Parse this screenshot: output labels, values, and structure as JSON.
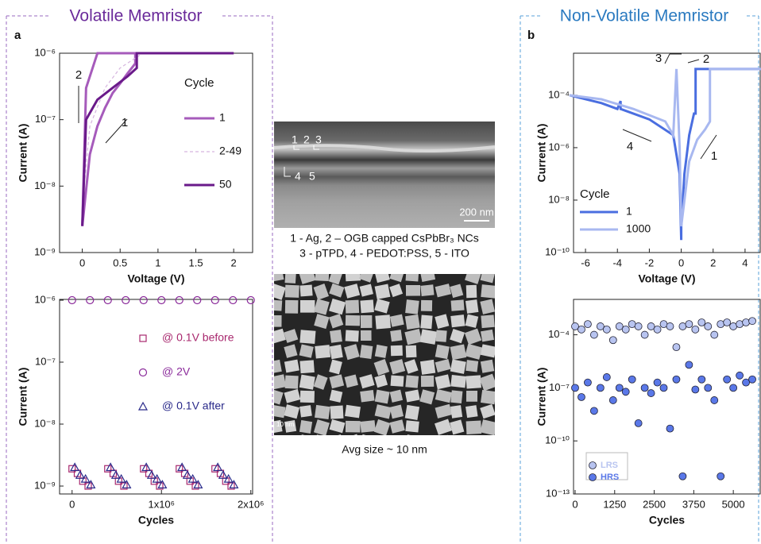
{
  "figure": {
    "left_title": "Volatile Memristor",
    "right_title": "Non-Volatile Memristor",
    "label_a": "a",
    "label_b": "b",
    "tem_labels": [
      "1",
      "2",
      "3",
      "4",
      "5"
    ],
    "tem_scale": "200 nm",
    "caption_lines": [
      "1 - Ag, 2 – OGB capped CsPbBr₃ NCs",
      "3 - pTPD, 4 - PEDOT:PSS, 5 - ITO"
    ],
    "sem_scale": "10 nm",
    "sem_caption": "Avg size ~ 10 nm"
  },
  "chart_data": [
    {
      "type": "line",
      "xlabel": "Voltage (V)",
      "ylabel": "Current (A)",
      "yscale": "log",
      "legend": true,
      "legend_title": "Cycle",
      "xlim": [
        -0.3,
        2.25
      ],
      "xticks": [
        0,
        0.5,
        1,
        1.5,
        2
      ],
      "ylim": [
        1e-09,
        1e-06
      ],
      "yticks": [
        {
          "value": 1e-09,
          "label": "10⁻⁹"
        },
        {
          "value": 1e-08,
          "label": "10⁻⁸"
        },
        {
          "value": 1e-07,
          "label": "10⁻⁷"
        },
        {
          "value": 1e-06,
          "label": "10⁻⁶"
        }
      ],
      "annotations": [
        "2",
        "1"
      ],
      "series": [
        {
          "name": "1",
          "color": "#a65bbb",
          "style": "solid",
          "x": [
            0,
            0.1,
            0.2,
            0.3,
            0.4,
            0.5,
            0.6,
            0.7,
            0.7,
            1,
            1.5,
            2,
            1,
            0.5,
            0.2,
            0.05,
            0
          ],
          "values": [
            2.5e-09,
            3e-08,
            8e-08,
            1.5e-07,
            2.5e-07,
            3.5e-07,
            5e-07,
            7e-07,
            1e-06,
            1e-06,
            1e-06,
            1e-06,
            1e-06,
            1e-06,
            1e-06,
            3e-07,
            2.5e-09
          ]
        },
        {
          "name": "2-49",
          "color": "#d6b5df",
          "style": "dashed",
          "x": [
            0,
            0.1,
            0.3,
            0.5,
            0.8,
            1.2
          ],
          "values": [
            5e-09,
            8e-08,
            3e-07,
            6e-07,
            1e-06,
            1e-06
          ]
        },
        {
          "name": "50",
          "color": "#6a1a8a",
          "style": "solid",
          "x": [
            0,
            0.05,
            0.2,
            0.4,
            0.6,
            0.72,
            0.72,
            1,
            2
          ],
          "values": [
            2.5e-09,
            1e-07,
            2e-07,
            3e-07,
            4.5e-07,
            6e-07,
            1e-06,
            1e-06,
            1e-06
          ]
        }
      ]
    },
    {
      "type": "scatter",
      "xlabel": "Cycles",
      "ylabel": "Current (A)",
      "yscale": "log",
      "legend": true,
      "filled": false,
      "xlim": [
        -140000,
        2020000
      ],
      "xticks": [
        0,
        {
          "value": 1000000,
          "label": "1x10⁶"
        },
        {
          "value": 2000000,
          "label": "2x10⁶"
        }
      ],
      "ylim": [
        7.45e-10,
        1.03e-06
      ],
      "yticks": [
        {
          "value": 1e-09,
          "label": "10⁻⁹"
        },
        {
          "value": 1e-08,
          "label": "10⁻⁸"
        },
        {
          "value": 1e-07,
          "label": "10⁻⁷"
        },
        {
          "value": 1e-06,
          "label": "10⁻⁶"
        }
      ],
      "series": [
        {
          "name": "@ 0.1V before",
          "color": "#a8286e",
          "marker": "square",
          "x": [
            0,
            60000,
            120000,
            180000,
            400000,
            460000,
            520000,
            580000,
            800000,
            860000,
            920000,
            980000,
            1200000,
            1260000,
            1320000,
            1380000,
            1600000,
            1660000,
            1720000,
            1780000
          ],
          "values": [
            1.9e-09,
            1.6e-09,
            1.2e-09,
            1e-09,
            1.9e-09,
            1.6e-09,
            1.2e-09,
            1e-09,
            1.9e-09,
            1.6e-09,
            1.2e-09,
            1e-09,
            1.9e-09,
            1.6e-09,
            1.2e-09,
            1e-09,
            1.9e-09,
            1.6e-09,
            1.2e-09,
            1e-09
          ]
        },
        {
          "name": "@ 2V",
          "color": "#8a2a9a",
          "marker": "circle",
          "x": [
            0,
            200000,
            400000,
            600000,
            800000,
            1000000,
            1200000,
            1400000,
            1600000,
            1800000,
            2000000
          ],
          "values": [
            1e-06,
            1e-06,
            1e-06,
            1e-06,
            1e-06,
            1e-06,
            1e-06,
            1e-06,
            1e-06,
            1e-06,
            1e-06
          ]
        },
        {
          "name": "@ 0.1V after",
          "color": "#2a2a8a",
          "marker": "triangle",
          "x": [
            30000,
            90000,
            150000,
            210000,
            430000,
            490000,
            550000,
            610000,
            830000,
            890000,
            950000,
            1010000,
            1230000,
            1290000,
            1350000,
            1410000,
            1630000,
            1690000,
            1750000,
            1810000
          ],
          "values": [
            2e-09,
            1.5e-09,
            1.3e-09,
            1.05e-09,
            2e-09,
            1.5e-09,
            1.3e-09,
            1.05e-09,
            2e-09,
            1.5e-09,
            1.3e-09,
            1.05e-09,
            2e-09,
            1.5e-09,
            1.3e-09,
            1.05e-09,
            2e-09,
            1.5e-09,
            1.3e-09,
            1.05e-09
          ]
        }
      ]
    },
    {
      "type": "line",
      "xlabel": "Voltage (V)",
      "ylabel": "Current (A)",
      "yscale": "log",
      "legend": true,
      "legend_title": "Cycle",
      "xlim": [
        -6.75,
        4.95
      ],
      "xticks": [
        -6,
        -4,
        -2,
        0,
        2,
        4
      ],
      "ylim": [
        1e-10,
        0.004
      ],
      "yticks": [
        {
          "value": 1e-10,
          "label": "10⁻¹⁰"
        },
        {
          "value": 1e-08,
          "label": "10⁻⁸"
        },
        {
          "value": 1e-06,
          "label": "10⁻⁶"
        },
        {
          "value": 0.0001,
          "label": "10⁻⁴"
        }
      ],
      "annotations": [
        "3",
        "2",
        "4",
        "1"
      ],
      "series": [
        {
          "name": "1",
          "color": "#4a6ee0",
          "style": "solid",
          "x": [
            -7,
            -5,
            -4,
            -3.8,
            -3.8,
            -2,
            -0.5,
            -0.1,
            0,
            0,
            0.2,
            0.5,
            0.8,
            0.9,
            0.9,
            1.5,
            5
          ],
          "values": [
            0.0001,
            5e-05,
            3e-05,
            6e-05,
            3e-05,
            1.2e-05,
            3e-06,
            1e-07,
            3e-10,
            1e-09,
            1e-07,
            3e-06,
            2e-05,
            2e-05,
            0.001,
            0.001,
            0.001
          ]
        },
        {
          "name": "1000",
          "color": "#a8b8f0",
          "style": "solid",
          "x": [
            -7,
            -5,
            -3,
            -1,
            -0.5,
            -0.3,
            -0.3,
            -0.1,
            0,
            0,
            0.5,
            1,
            1.5,
            1.8,
            1.8,
            5
          ],
          "values": [
            0.0001,
            7e-05,
            3e-05,
            1e-05,
            3e-06,
            0.001,
            0.001,
            1e-06,
            1e-09,
            1e-09,
            3e-07,
            2e-06,
            5e-06,
            1e-05,
            0.001,
            0.001
          ]
        }
      ]
    },
    {
      "type": "scatter",
      "xlabel": "Cycles",
      "ylabel": "Current (A)",
      "yscale": "log",
      "legend": true,
      "filled": true,
      "xlim": [
        -50,
        5850
      ],
      "xticks": [
        0,
        1250,
        2500,
        3750,
        5000
      ],
      "ylim": [
        1e-13,
        0.01
      ],
      "yticks": [
        {
          "value": 1e-13,
          "label": "10⁻¹³"
        },
        {
          "value": 1e-10,
          "label": "10⁻¹⁰"
        },
        {
          "value": 1e-07,
          "label": "10⁻⁷"
        },
        {
          "value": 0.0001,
          "label": "10⁻⁴"
        }
      ],
      "series": [
        {
          "name": "LRS",
          "color": "#b8c4f0",
          "marker": "circle",
          "x": [
            0,
            200,
            400,
            600,
            800,
            1000,
            1200,
            1400,
            1600,
            1800,
            2000,
            2200,
            2400,
            2600,
            2800,
            3000,
            3200,
            3400,
            3600,
            3800,
            4000,
            4200,
            4400,
            4600,
            4800,
            5000,
            5200,
            5400,
            5600
          ],
          "values": [
            0.0003,
            0.0002,
            0.0004,
            0.0001,
            0.0003,
            0.0002,
            5e-05,
            0.0003,
            0.0002,
            0.0004,
            0.0003,
            0.0001,
            0.0003,
            0.0002,
            0.0004,
            0.0003,
            2e-05,
            0.0003,
            0.0004,
            0.0002,
            0.0005,
            0.0003,
            0.0001,
            0.0004,
            0.0005,
            0.0003,
            0.0004,
            0.0005,
            0.0006
          ]
        },
        {
          "name": "HRS",
          "color": "#5a78e8",
          "marker": "circle",
          "x": [
            0,
            200,
            400,
            600,
            800,
            1000,
            1200,
            1400,
            1600,
            1800,
            2000,
            2200,
            2400,
            2600,
            2800,
            3000,
            3200,
            3400,
            3600,
            3800,
            4000,
            4200,
            4400,
            4600,
            4800,
            5000,
            5200,
            5400,
            5600
          ],
          "values": [
            1e-07,
            3e-08,
            2e-07,
            5e-09,
            1e-07,
            4e-07,
            2e-08,
            1e-07,
            6e-08,
            3e-07,
            1e-09,
            1e-07,
            5e-08,
            2e-07,
            1e-07,
            5e-10,
            3e-07,
            1e-12,
            2e-06,
            8e-08,
            3e-07,
            1e-07,
            2e-08,
            1e-12,
            3e-07,
            1e-07,
            5e-07,
            2e-07,
            3e-07
          ]
        }
      ]
    }
  ]
}
